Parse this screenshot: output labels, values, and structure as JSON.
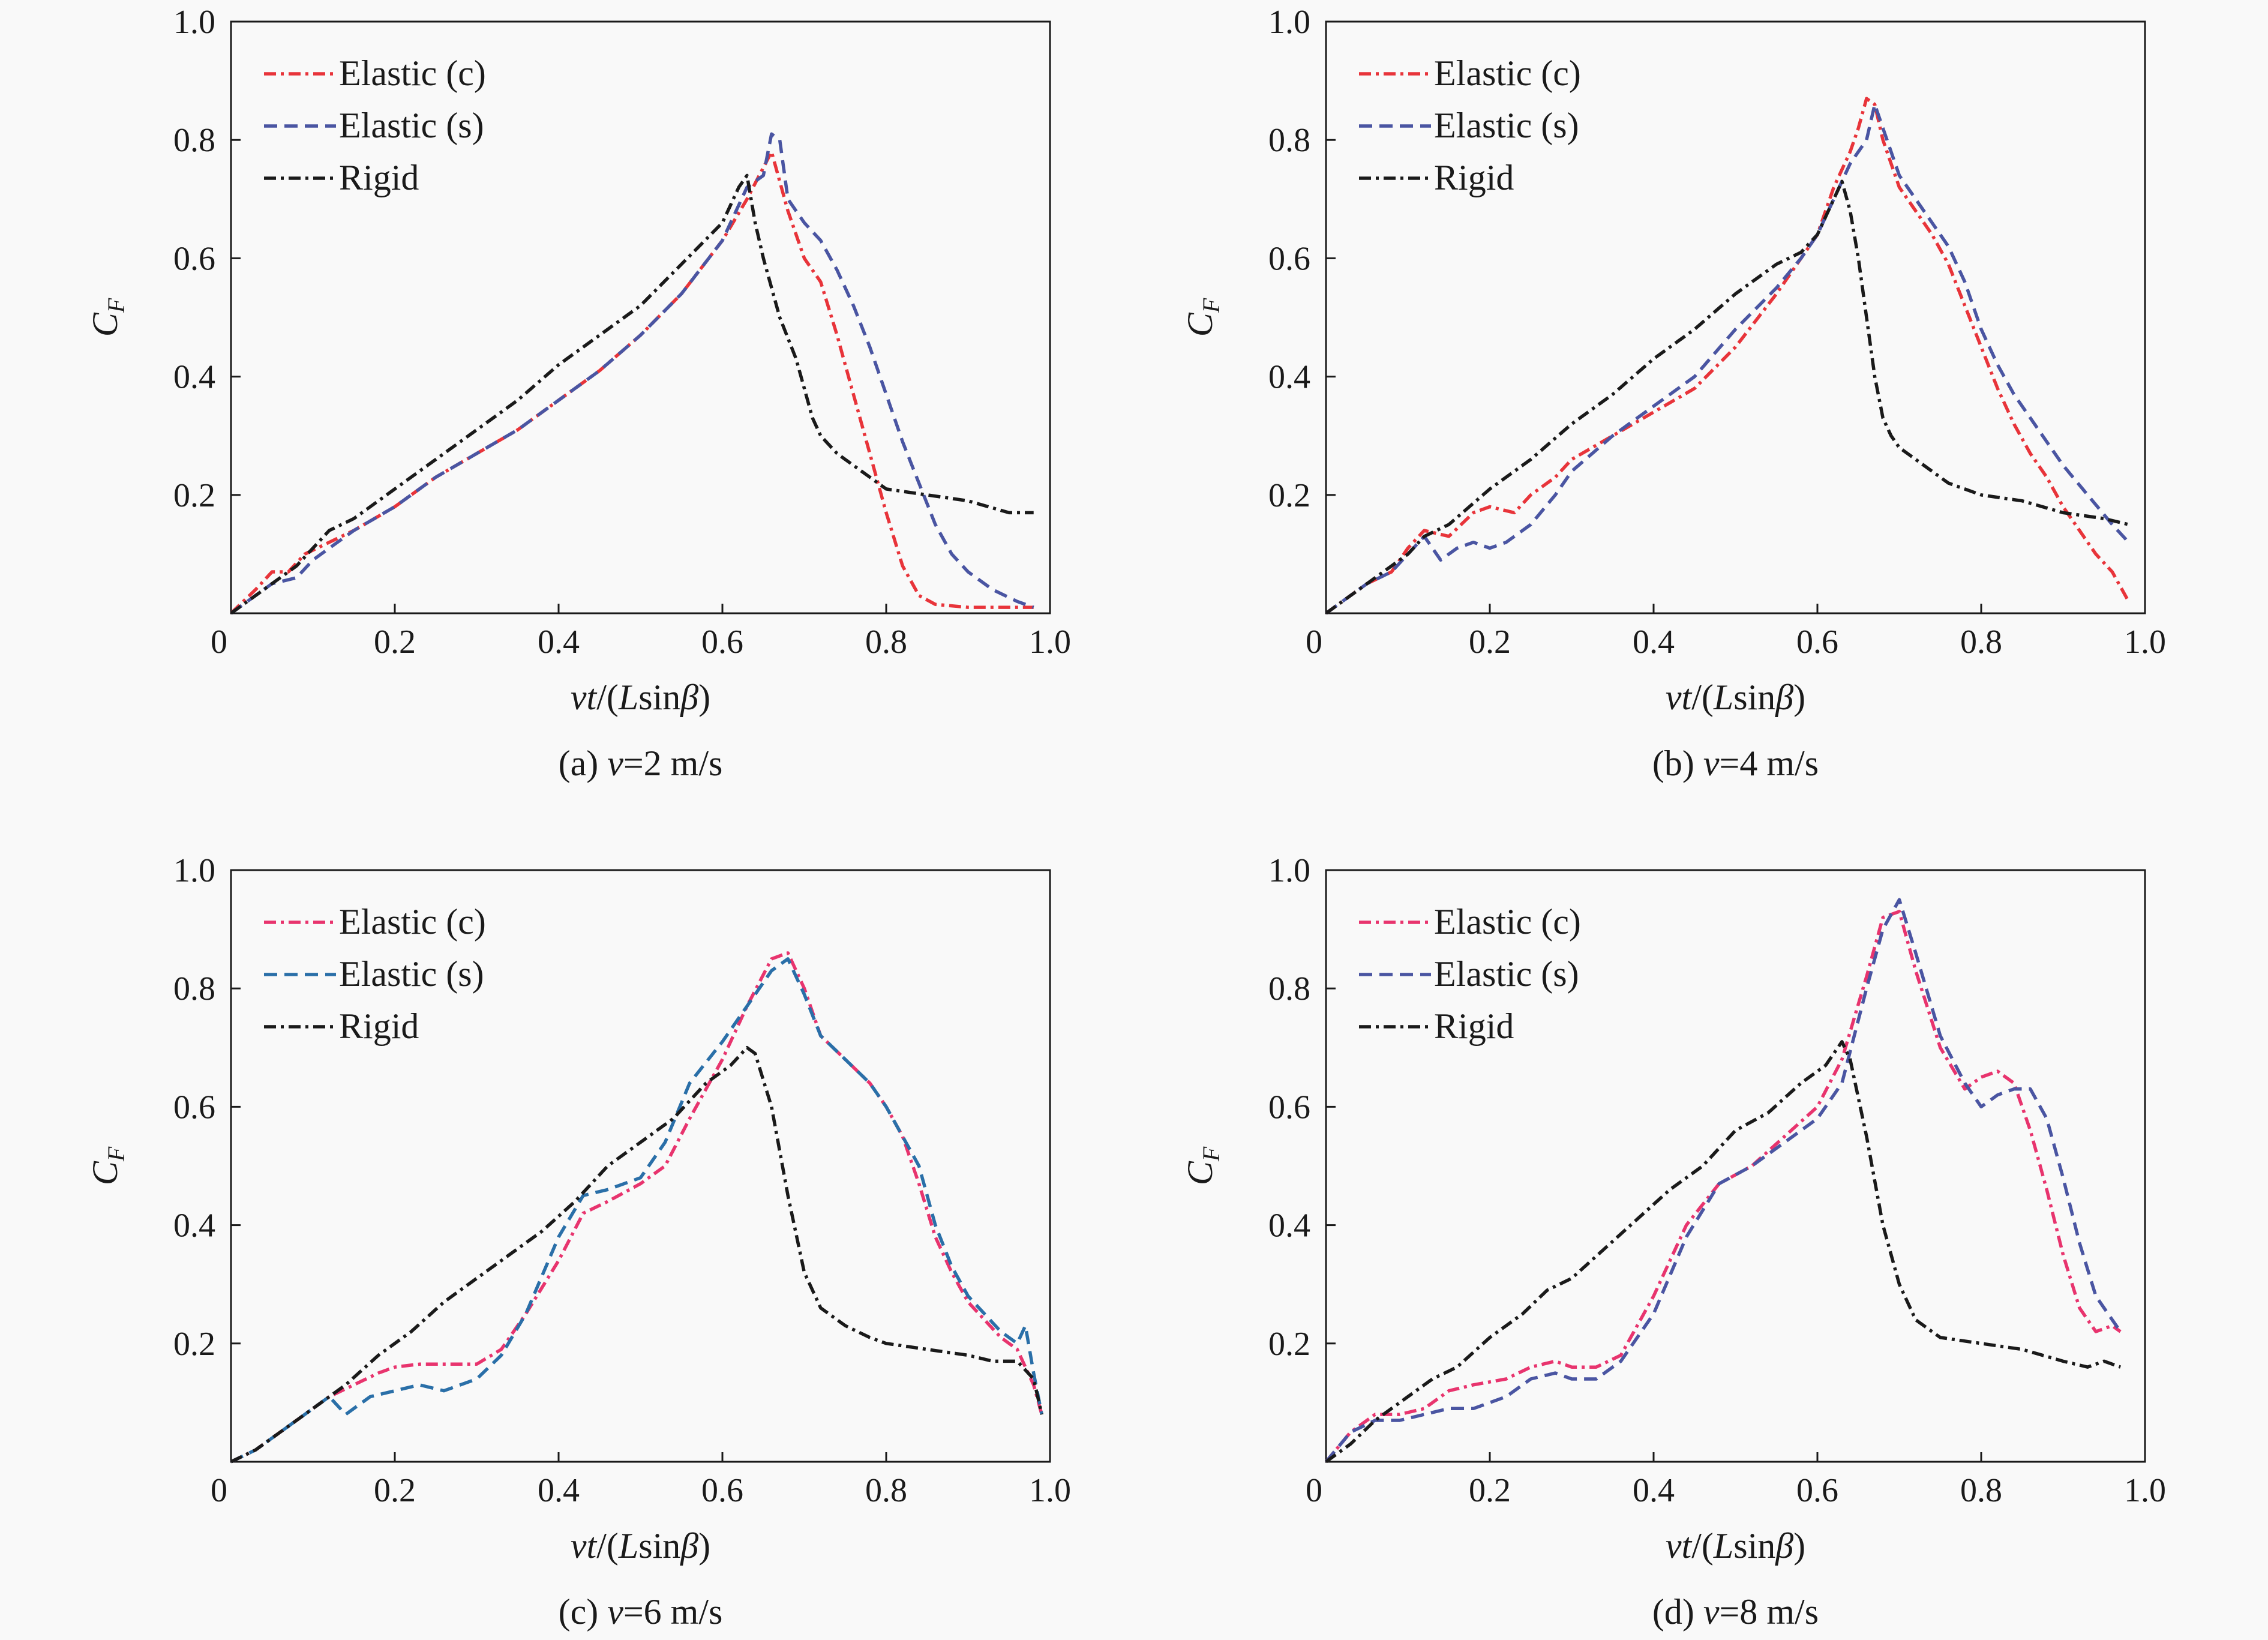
{
  "chart_data": [
    {
      "type": "line",
      "caption_prefix": "(a) ",
      "caption_var": "v",
      "caption_suffix": "=2 m/s",
      "xlabel_parts": [
        "vt",
        "/(",
        "L",
        "sin",
        "β",
        ")"
      ],
      "ylabel_main": "C",
      "ylabel_sub": "F",
      "xlim": [
        0,
        1.0
      ],
      "ylim": [
        0,
        1.0
      ],
      "xticks": [
        "0",
        "0.2",
        "0.4",
        "0.6",
        "0.8",
        "1.0"
      ],
      "yticks": [
        "0.2",
        "0.4",
        "0.6",
        "0.8",
        "1.0"
      ],
      "legend_position": "top-left",
      "series": [
        {
          "name": "Elastic (c)",
          "color": "#e8343a",
          "dash": "dashdot",
          "x": [
            0.0,
            0.03,
            0.05,
            0.07,
            0.09,
            0.12,
            0.15,
            0.2,
            0.25,
            0.3,
            0.35,
            0.4,
            0.45,
            0.5,
            0.55,
            0.6,
            0.63,
            0.66,
            0.68,
            0.7,
            0.72,
            0.74,
            0.76,
            0.78,
            0.8,
            0.82,
            0.84,
            0.86,
            0.9,
            0.95,
            0.98
          ],
          "y": [
            0.0,
            0.04,
            0.07,
            0.07,
            0.1,
            0.12,
            0.14,
            0.18,
            0.23,
            0.27,
            0.31,
            0.36,
            0.41,
            0.47,
            0.54,
            0.63,
            0.7,
            0.78,
            0.68,
            0.6,
            0.56,
            0.47,
            0.37,
            0.27,
            0.17,
            0.08,
            0.03,
            0.015,
            0.01,
            0.01,
            0.01
          ]
        },
        {
          "name": "Elastic (s)",
          "color": "#4a55a2",
          "dash": "dashed",
          "x": [
            0.0,
            0.03,
            0.05,
            0.08,
            0.1,
            0.12,
            0.15,
            0.2,
            0.25,
            0.3,
            0.35,
            0.4,
            0.45,
            0.5,
            0.55,
            0.6,
            0.63,
            0.65,
            0.66,
            0.67,
            0.68,
            0.7,
            0.72,
            0.74,
            0.76,
            0.78,
            0.8,
            0.82,
            0.84,
            0.86,
            0.88,
            0.9,
            0.93,
            0.96,
            0.98
          ],
          "y": [
            0.0,
            0.03,
            0.05,
            0.06,
            0.09,
            0.11,
            0.14,
            0.18,
            0.23,
            0.27,
            0.31,
            0.36,
            0.41,
            0.47,
            0.54,
            0.63,
            0.72,
            0.74,
            0.81,
            0.8,
            0.7,
            0.66,
            0.63,
            0.58,
            0.52,
            0.45,
            0.37,
            0.29,
            0.22,
            0.15,
            0.1,
            0.07,
            0.04,
            0.02,
            0.01
          ]
        },
        {
          "name": "Rigid",
          "color": "#1a1a1a",
          "dash": "dashdot",
          "x": [
            0.0,
            0.02,
            0.04,
            0.06,
            0.08,
            0.1,
            0.12,
            0.15,
            0.2,
            0.25,
            0.3,
            0.35,
            0.4,
            0.45,
            0.5,
            0.55,
            0.6,
            0.62,
            0.63,
            0.64,
            0.65,
            0.67,
            0.69,
            0.7,
            0.71,
            0.72,
            0.74,
            0.76,
            0.78,
            0.8,
            0.85,
            0.9,
            0.95,
            0.98
          ],
          "y": [
            0.0,
            0.02,
            0.04,
            0.06,
            0.08,
            0.11,
            0.14,
            0.16,
            0.21,
            0.26,
            0.31,
            0.36,
            0.42,
            0.47,
            0.52,
            0.59,
            0.66,
            0.72,
            0.74,
            0.66,
            0.6,
            0.5,
            0.43,
            0.38,
            0.33,
            0.3,
            0.27,
            0.25,
            0.23,
            0.21,
            0.2,
            0.19,
            0.17,
            0.17
          ]
        }
      ]
    },
    {
      "type": "line",
      "caption_prefix": "(b) ",
      "caption_var": "v",
      "caption_suffix": "=4 m/s",
      "xlabel_parts": [
        "vt",
        "/(",
        "L",
        "sin",
        "β",
        ")"
      ],
      "ylabel_main": "C",
      "ylabel_sub": "F",
      "xlim": [
        0,
        1.0
      ],
      "ylim": [
        0,
        1.0
      ],
      "xticks": [
        "0",
        "0.2",
        "0.4",
        "0.6",
        "0.8",
        "1.0"
      ],
      "yticks": [
        "0.2",
        "0.4",
        "0.6",
        "0.8",
        "1.0"
      ],
      "legend_position": "top-left",
      "series": [
        {
          "name": "Elastic (c)",
          "color": "#e8343a",
          "dash": "dashdot",
          "x": [
            0.0,
            0.03,
            0.05,
            0.08,
            0.1,
            0.12,
            0.15,
            0.18,
            0.2,
            0.23,
            0.25,
            0.28,
            0.3,
            0.35,
            0.4,
            0.45,
            0.5,
            0.55,
            0.58,
            0.6,
            0.62,
            0.64,
            0.65,
            0.66,
            0.67,
            0.68,
            0.7,
            0.72,
            0.74,
            0.76,
            0.78,
            0.8,
            0.82,
            0.84,
            0.86,
            0.88,
            0.9,
            0.92,
            0.94,
            0.96,
            0.98
          ],
          "y": [
            0.0,
            0.03,
            0.05,
            0.07,
            0.11,
            0.14,
            0.13,
            0.17,
            0.18,
            0.17,
            0.2,
            0.23,
            0.26,
            0.3,
            0.34,
            0.38,
            0.45,
            0.54,
            0.6,
            0.64,
            0.72,
            0.78,
            0.82,
            0.87,
            0.86,
            0.8,
            0.72,
            0.68,
            0.64,
            0.59,
            0.52,
            0.45,
            0.38,
            0.32,
            0.27,
            0.23,
            0.18,
            0.14,
            0.1,
            0.07,
            0.02
          ]
        },
        {
          "name": "Elastic (s)",
          "color": "#4a55a2",
          "dash": "dashed",
          "x": [
            0.0,
            0.03,
            0.05,
            0.08,
            0.1,
            0.12,
            0.14,
            0.16,
            0.18,
            0.2,
            0.22,
            0.25,
            0.28,
            0.3,
            0.35,
            0.4,
            0.45,
            0.5,
            0.55,
            0.58,
            0.6,
            0.62,
            0.64,
            0.66,
            0.67,
            0.68,
            0.7,
            0.72,
            0.74,
            0.76,
            0.78,
            0.8,
            0.82,
            0.84,
            0.86,
            0.88,
            0.9,
            0.93,
            0.96,
            0.98
          ],
          "y": [
            0.0,
            0.03,
            0.05,
            0.07,
            0.1,
            0.13,
            0.09,
            0.11,
            0.12,
            0.11,
            0.12,
            0.15,
            0.2,
            0.24,
            0.3,
            0.35,
            0.4,
            0.48,
            0.55,
            0.6,
            0.64,
            0.7,
            0.76,
            0.8,
            0.86,
            0.82,
            0.74,
            0.7,
            0.66,
            0.62,
            0.56,
            0.48,
            0.42,
            0.37,
            0.33,
            0.29,
            0.25,
            0.2,
            0.15,
            0.12
          ]
        },
        {
          "name": "Rigid",
          "color": "#1a1a1a",
          "dash": "dashdot",
          "x": [
            0.0,
            0.02,
            0.04,
            0.06,
            0.08,
            0.1,
            0.12,
            0.15,
            0.2,
            0.25,
            0.3,
            0.35,
            0.4,
            0.45,
            0.5,
            0.55,
            0.58,
            0.6,
            0.62,
            0.63,
            0.64,
            0.65,
            0.66,
            0.67,
            0.68,
            0.69,
            0.7,
            0.72,
            0.74,
            0.76,
            0.8,
            0.85,
            0.9,
            0.95,
            0.98
          ],
          "y": [
            0.0,
            0.02,
            0.04,
            0.06,
            0.08,
            0.1,
            0.13,
            0.15,
            0.21,
            0.26,
            0.32,
            0.37,
            0.43,
            0.48,
            0.54,
            0.59,
            0.61,
            0.64,
            0.7,
            0.73,
            0.68,
            0.6,
            0.5,
            0.4,
            0.33,
            0.3,
            0.28,
            0.26,
            0.24,
            0.22,
            0.2,
            0.19,
            0.17,
            0.16,
            0.15
          ]
        }
      ]
    },
    {
      "type": "line",
      "caption_prefix": "(c) ",
      "caption_var": "v",
      "caption_suffix": "=6 m/s",
      "xlabel_parts": [
        "vt",
        "/(",
        "L",
        "sin",
        "β",
        ")"
      ],
      "ylabel_main": "C",
      "ylabel_sub": "F",
      "xlim": [
        0,
        1.0
      ],
      "ylim": [
        0,
        1.0
      ],
      "xticks": [
        "0",
        "0.2",
        "0.4",
        "0.6",
        "0.8",
        "1.0"
      ],
      "yticks": [
        "0.2",
        "0.4",
        "0.6",
        "0.8",
        "1.0"
      ],
      "legend_position": "top-left",
      "series": [
        {
          "name": "Elastic (c)",
          "color": "#e8346e",
          "dash": "dashdot",
          "x": [
            0.0,
            0.03,
            0.06,
            0.09,
            0.12,
            0.15,
            0.18,
            0.2,
            0.23,
            0.26,
            0.3,
            0.33,
            0.36,
            0.4,
            0.43,
            0.46,
            0.5,
            0.53,
            0.56,
            0.6,
            0.63,
            0.66,
            0.68,
            0.7,
            0.72,
            0.75,
            0.78,
            0.8,
            0.82,
            0.84,
            0.86,
            0.88,
            0.9,
            0.92,
            0.94,
            0.96,
            0.97,
            0.98,
            0.99
          ],
          "y": [
            0.0,
            0.02,
            0.05,
            0.08,
            0.11,
            0.13,
            0.15,
            0.16,
            0.165,
            0.165,
            0.165,
            0.19,
            0.25,
            0.34,
            0.42,
            0.44,
            0.47,
            0.5,
            0.58,
            0.68,
            0.77,
            0.85,
            0.86,
            0.8,
            0.72,
            0.68,
            0.64,
            0.6,
            0.55,
            0.47,
            0.38,
            0.32,
            0.27,
            0.24,
            0.21,
            0.19,
            0.16,
            0.13,
            0.08
          ]
        },
        {
          "name": "Elastic (s)",
          "color": "#2a6fa8",
          "dash": "dashed",
          "x": [
            0.0,
            0.03,
            0.06,
            0.09,
            0.12,
            0.14,
            0.17,
            0.2,
            0.23,
            0.26,
            0.3,
            0.33,
            0.36,
            0.4,
            0.43,
            0.46,
            0.5,
            0.53,
            0.56,
            0.6,
            0.63,
            0.66,
            0.68,
            0.7,
            0.72,
            0.75,
            0.78,
            0.8,
            0.82,
            0.84,
            0.86,
            0.88,
            0.9,
            0.92,
            0.94,
            0.96,
            0.97,
            0.98,
            0.99
          ],
          "y": [
            0.0,
            0.02,
            0.05,
            0.08,
            0.11,
            0.08,
            0.11,
            0.12,
            0.13,
            0.12,
            0.14,
            0.18,
            0.25,
            0.38,
            0.45,
            0.46,
            0.48,
            0.54,
            0.64,
            0.71,
            0.77,
            0.83,
            0.85,
            0.79,
            0.72,
            0.68,
            0.64,
            0.6,
            0.55,
            0.5,
            0.4,
            0.33,
            0.28,
            0.25,
            0.22,
            0.2,
            0.23,
            0.15,
            0.08
          ]
        },
        {
          "name": "Rigid",
          "color": "#1a1a1a",
          "dash": "dashdot",
          "x": [
            0.0,
            0.03,
            0.06,
            0.1,
            0.14,
            0.18,
            0.22,
            0.26,
            0.3,
            0.34,
            0.38,
            0.42,
            0.46,
            0.5,
            0.54,
            0.58,
            0.61,
            0.63,
            0.64,
            0.66,
            0.68,
            0.7,
            0.72,
            0.75,
            0.78,
            0.8,
            0.85,
            0.9,
            0.93,
            0.96,
            0.98,
            0.99
          ],
          "y": [
            0.0,
            0.02,
            0.05,
            0.09,
            0.13,
            0.18,
            0.22,
            0.27,
            0.31,
            0.35,
            0.39,
            0.44,
            0.5,
            0.54,
            0.58,
            0.64,
            0.67,
            0.7,
            0.69,
            0.6,
            0.45,
            0.32,
            0.26,
            0.23,
            0.21,
            0.2,
            0.19,
            0.18,
            0.17,
            0.17,
            0.14,
            0.08
          ]
        }
      ]
    },
    {
      "type": "line",
      "caption_prefix": "(d) ",
      "caption_var": "v",
      "caption_suffix": "=8 m/s",
      "xlabel_parts": [
        "vt",
        "/(",
        "L",
        "sin",
        "β",
        ")"
      ],
      "ylabel_main": "C",
      "ylabel_sub": "F",
      "xlim": [
        0,
        1.0
      ],
      "ylim": [
        0,
        1.0
      ],
      "xticks": [
        "0",
        "0.2",
        "0.4",
        "0.6",
        "0.8",
        "1.0"
      ],
      "yticks": [
        "0.2",
        "0.4",
        "0.6",
        "0.8",
        "1.0"
      ],
      "legend_position": "top-left",
      "series": [
        {
          "name": "Elastic (c)",
          "color": "#e8346e",
          "dash": "dashdot",
          "x": [
            0.0,
            0.03,
            0.06,
            0.09,
            0.12,
            0.15,
            0.18,
            0.22,
            0.25,
            0.28,
            0.3,
            0.33,
            0.36,
            0.4,
            0.44,
            0.48,
            0.52,
            0.56,
            0.6,
            0.63,
            0.66,
            0.68,
            0.7,
            0.72,
            0.75,
            0.78,
            0.8,
            0.82,
            0.84,
            0.86,
            0.88,
            0.9,
            0.92,
            0.94,
            0.96,
            0.97
          ],
          "y": [
            0.0,
            0.05,
            0.08,
            0.08,
            0.09,
            0.12,
            0.13,
            0.14,
            0.16,
            0.17,
            0.16,
            0.16,
            0.18,
            0.28,
            0.4,
            0.47,
            0.5,
            0.55,
            0.6,
            0.68,
            0.82,
            0.92,
            0.93,
            0.83,
            0.7,
            0.63,
            0.65,
            0.66,
            0.64,
            0.56,
            0.46,
            0.35,
            0.26,
            0.22,
            0.23,
            0.22
          ]
        },
        {
          "name": "Elastic (s)",
          "color": "#4a55a2",
          "dash": "dashed",
          "x": [
            0.0,
            0.03,
            0.06,
            0.09,
            0.12,
            0.15,
            0.18,
            0.22,
            0.25,
            0.28,
            0.3,
            0.33,
            0.36,
            0.4,
            0.44,
            0.48,
            0.52,
            0.56,
            0.6,
            0.63,
            0.66,
            0.68,
            0.7,
            0.72,
            0.75,
            0.78,
            0.8,
            0.82,
            0.84,
            0.86,
            0.88,
            0.9,
            0.92,
            0.94,
            0.96,
            0.97
          ],
          "y": [
            0.0,
            0.05,
            0.07,
            0.07,
            0.08,
            0.09,
            0.09,
            0.11,
            0.14,
            0.15,
            0.14,
            0.14,
            0.17,
            0.25,
            0.38,
            0.47,
            0.5,
            0.54,
            0.58,
            0.64,
            0.8,
            0.9,
            0.95,
            0.86,
            0.72,
            0.64,
            0.6,
            0.62,
            0.63,
            0.63,
            0.58,
            0.48,
            0.37,
            0.28,
            0.24,
            0.22
          ]
        },
        {
          "name": "Rigid",
          "color": "#1a1a1a",
          "dash": "dashdot",
          "x": [
            0.0,
            0.03,
            0.06,
            0.1,
            0.13,
            0.16,
            0.2,
            0.24,
            0.27,
            0.3,
            0.34,
            0.38,
            0.42,
            0.46,
            0.5,
            0.54,
            0.58,
            0.61,
            0.63,
            0.64,
            0.66,
            0.68,
            0.7,
            0.72,
            0.75,
            0.8,
            0.85,
            0.9,
            0.93,
            0.95,
            0.97
          ],
          "y": [
            0.0,
            0.03,
            0.07,
            0.11,
            0.14,
            0.16,
            0.21,
            0.25,
            0.29,
            0.31,
            0.36,
            0.41,
            0.46,
            0.5,
            0.56,
            0.59,
            0.64,
            0.67,
            0.71,
            0.68,
            0.55,
            0.4,
            0.3,
            0.24,
            0.21,
            0.2,
            0.19,
            0.17,
            0.16,
            0.17,
            0.16
          ]
        }
      ]
    }
  ]
}
